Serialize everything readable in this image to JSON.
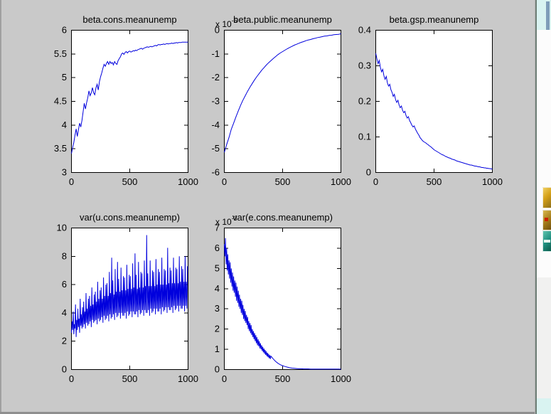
{
  "window": {
    "background": "#c9c9c9",
    "plot_background": "#ffffff",
    "axis_color": "#000000",
    "accent_line_color": "#0000dd"
  },
  "desktop_strip": {
    "visible": true,
    "icons": [
      "desktop-icon-1",
      "desktop-icon-2",
      "desktop-icon-3"
    ]
  },
  "chart_data": [
    {
      "type": "line",
      "title": "beta.cons.meanunemp",
      "subplot": {
        "row": 0,
        "col": 0
      },
      "xlim": [
        0,
        1000
      ],
      "ylim": [
        3,
        6
      ],
      "x_ticks": [
        0,
        500,
        1000
      ],
      "x_tick_labels": [
        "0",
        "500",
        "1000"
      ],
      "y_ticks": [
        3,
        3.5,
        4,
        4.5,
        5,
        5.5,
        6
      ],
      "y_tick_labels": [
        "3",
        "3.5",
        "4",
        "4.5",
        "5",
        "5.5",
        "6"
      ],
      "grid": false,
      "legend": null,
      "exponent": null,
      "line_color": "#0000dd",
      "x_start": 0,
      "x_step": 10,
      "y": [
        3.4,
        3.52,
        3.63,
        3.78,
        3.92,
        3.76,
        3.9,
        4.04,
        3.96,
        4.1,
        4.28,
        4.46,
        4.34,
        4.47,
        4.58,
        4.72,
        4.62,
        4.68,
        4.79,
        4.68,
        4.64,
        4.78,
        4.86,
        4.74,
        4.92,
        5.02,
        5.1,
        5.2,
        5.28,
        5.24,
        5.3,
        5.34,
        5.28,
        5.34,
        5.3,
        5.32,
        5.27,
        5.34,
        5.3,
        5.28,
        5.36,
        5.4,
        5.44,
        5.5,
        5.52,
        5.49,
        5.53,
        5.55,
        5.52,
        5.55,
        5.56,
        5.54,
        5.55,
        5.57,
        5.56,
        5.58,
        5.57,
        5.59,
        5.6,
        5.61,
        5.62,
        5.6,
        5.62,
        5.63,
        5.64,
        5.65,
        5.64,
        5.65,
        5.66,
        5.65,
        5.66,
        5.67,
        5.68,
        5.67,
        5.69,
        5.7,
        5.69,
        5.7,
        5.7,
        5.71,
        5.7,
        5.71,
        5.72,
        5.71,
        5.72,
        5.72,
        5.73,
        5.72,
        5.73,
        5.73,
        5.74,
        5.73,
        5.74,
        5.74,
        5.74,
        5.75,
        5.75,
        5.75,
        5.75,
        5.75,
        5.75
      ]
    },
    {
      "type": "line",
      "title": "beta.public.meanunemp",
      "subplot": {
        "row": 0,
        "col": 1
      },
      "xlim": [
        0,
        1000
      ],
      "ylim": [
        -6,
        0
      ],
      "x_ticks": [
        0,
        500,
        1000
      ],
      "x_tick_labels": [
        "0",
        "500",
        "1000"
      ],
      "y_ticks": [
        -6,
        -5,
        -4,
        -3,
        -2,
        -1,
        0
      ],
      "y_tick_labels": [
        "-6",
        "-5",
        "-4",
        "-3",
        "-2",
        "-1",
        "0"
      ],
      "grid": false,
      "legend": null,
      "exponent": {
        "text": "x 10",
        "sup": "-5"
      },
      "line_color": "#0000dd",
      "x_start": 0,
      "x_step": 20,
      "y": [
        -5.15,
        -4.82,
        -4.52,
        -4.18,
        -3.92,
        -3.65,
        -3.4,
        -3.16,
        -2.95,
        -2.76,
        -2.57,
        -2.4,
        -2.24,
        -2.09,
        -1.95,
        -1.82,
        -1.69,
        -1.58,
        -1.47,
        -1.37,
        -1.28,
        -1.19,
        -1.11,
        -1.03,
        -0.96,
        -0.9,
        -0.84,
        -0.78,
        -0.73,
        -0.68,
        -0.63,
        -0.59,
        -0.55,
        -0.51,
        -0.48,
        -0.44,
        -0.41,
        -0.39,
        -0.36,
        -0.34,
        -0.31,
        -0.29,
        -0.27,
        -0.25,
        -0.24,
        -0.22,
        -0.21,
        -0.19,
        -0.18,
        -0.17,
        -0.15
      ]
    },
    {
      "type": "line",
      "title": "beta.gsp.meanunemp",
      "subplot": {
        "row": 0,
        "col": 2
      },
      "xlim": [
        0,
        1000
      ],
      "ylim": [
        0,
        0.4
      ],
      "x_ticks": [
        0,
        500,
        1000
      ],
      "x_tick_labels": [
        "0",
        "500",
        "1000"
      ],
      "y_ticks": [
        0,
        0.1,
        0.2,
        0.3,
        0.4
      ],
      "y_tick_labels": [
        "0",
        "0.1",
        "0.2",
        "0.3",
        "0.4"
      ],
      "grid": false,
      "legend": null,
      "exponent": null,
      "line_color": "#0000dd",
      "x_start": 0,
      "x_step": 10,
      "y": [
        0.335,
        0.32,
        0.306,
        0.315,
        0.295,
        0.283,
        0.29,
        0.272,
        0.262,
        0.27,
        0.252,
        0.243,
        0.248,
        0.233,
        0.225,
        0.214,
        0.22,
        0.205,
        0.197,
        0.203,
        0.19,
        0.182,
        0.187,
        0.175,
        0.168,
        0.172,
        0.16,
        0.153,
        0.157,
        0.146,
        0.14,
        0.133,
        0.128,
        0.131,
        0.122,
        0.116,
        0.11,
        0.105,
        0.098,
        0.094,
        0.09,
        0.087,
        0.085,
        0.083,
        0.08,
        0.078,
        0.075,
        0.073,
        0.07,
        0.067,
        0.064,
        0.062,
        0.06,
        0.058,
        0.056,
        0.054,
        0.052,
        0.05,
        0.049,
        0.047,
        0.045,
        0.044,
        0.042,
        0.041,
        0.04,
        0.038,
        0.037,
        0.036,
        0.035,
        0.033,
        0.032,
        0.031,
        0.03,
        0.029,
        0.028,
        0.027,
        0.026,
        0.025,
        0.024,
        0.023,
        0.022,
        0.021,
        0.021,
        0.02,
        0.019,
        0.018,
        0.018,
        0.017,
        0.016,
        0.016,
        0.015,
        0.014,
        0.014,
        0.013,
        0.013,
        0.012,
        0.012,
        0.011,
        0.011,
        0.01,
        0.01
      ]
    },
    {
      "type": "line",
      "title": "var(u.cons.meanunemp)",
      "subplot": {
        "row": 1,
        "col": 0
      },
      "xlim": [
        0,
        1000
      ],
      "ylim": [
        0,
        10
      ],
      "x_ticks": [
        0,
        500,
        1000
      ],
      "x_tick_labels": [
        "0",
        "500",
        "1000"
      ],
      "y_ticks": [
        0,
        2,
        4,
        6,
        8,
        10
      ],
      "y_tick_labels": [
        "0",
        "2",
        "4",
        "6",
        "8",
        "10"
      ],
      "grid": false,
      "legend": null,
      "exponent": null,
      "line_color": "#0000dd",
      "x_start": 0,
      "x_step": 5,
      "y": [
        2.6,
        3.4,
        2.8,
        4.1,
        2.5,
        3.2,
        2.9,
        4.6,
        2.3,
        3.5,
        2.8,
        4.3,
        3.0,
        3.6,
        2.6,
        5.0,
        3.1,
        3.9,
        2.9,
        4.4,
        3.0,
        4.8,
        3.2,
        4.1,
        2.9,
        5.4,
        3.3,
        4.3,
        3.1,
        5.0,
        3.2,
        5.2,
        3.4,
        4.5,
        3.0,
        5.8,
        3.5,
        4.6,
        3.3,
        5.3,
        3.4,
        5.5,
        3.5,
        4.8,
        3.2,
        6.2,
        3.6,
        5.0,
        3.4,
        5.6,
        3.5,
        5.8,
        3.7,
        5.0,
        3.3,
        6.5,
        3.8,
        5.2,
        3.5,
        6.0,
        3.6,
        6.1,
        3.8,
        5.2,
        3.4,
        6.9,
        3.9,
        5.4,
        3.6,
        7.9,
        3.7,
        6.3,
        3.9,
        5.3,
        3.5,
        7.1,
        4.0,
        5.5,
        3.7,
        7.6,
        3.8,
        6.4,
        4.0,
        5.5,
        3.6,
        7.2,
        4.0,
        5.6,
        3.8,
        6.6,
        3.8,
        6.5,
        4.0,
        5.6,
        3.6,
        7.4,
        4.1,
        5.7,
        3.8,
        6.7,
        3.9,
        6.6,
        4.1,
        5.7,
        3.7,
        7.5,
        4.1,
        5.8,
        3.9,
        8.2,
        3.9,
        6.7,
        4.1,
        5.7,
        3.7,
        7.6,
        4.2,
        5.8,
        3.9,
        6.9,
        4.0,
        6.8,
        4.2,
        5.8,
        3.8,
        7.7,
        4.2,
        5.9,
        4.0,
        9.5,
        4.0,
        6.8,
        4.2,
        5.9,
        3.8,
        7.7,
        4.3,
        5.9,
        4.0,
        7.0,
        4.1,
        6.9,
        4.3,
        5.9,
        3.9,
        7.8,
        4.3,
        6.0,
        4.1,
        7.1,
        4.1,
        6.9,
        4.3,
        6.0,
        3.9,
        7.9,
        4.4,
        6.0,
        4.1,
        7.1,
        4.2,
        7.0,
        4.4,
        6.0,
        4.0,
        8.6,
        4.4,
        6.1,
        4.2,
        7.2,
        4.2,
        7.0,
        4.4,
        6.1,
        4.0,
        7.9,
        4.5,
        6.1,
        4.2,
        7.2,
        4.3,
        7.1,
        4.5,
        6.1,
        4.1,
        8.0,
        4.5,
        6.2,
        4.3,
        7.3,
        4.3,
        7.1,
        4.5,
        6.2,
        4.1,
        8.0,
        4.5,
        6.2,
        4.3,
        7.3
      ]
    },
    {
      "type": "line",
      "title": "var(e.cons.meanunemp)",
      "subplot": {
        "row": 1,
        "col": 1
      },
      "xlim": [
        0,
        1000
      ],
      "ylim": [
        0,
        7
      ],
      "x_ticks": [
        0,
        500,
        1000
      ],
      "x_tick_labels": [
        "0",
        "500",
        "1000"
      ],
      "y_ticks": [
        0,
        1,
        2,
        3,
        4,
        5,
        6,
        7
      ],
      "y_tick_labels": [
        "0",
        "1",
        "2",
        "3",
        "4",
        "5",
        "6",
        "7"
      ],
      "grid": false,
      "legend": null,
      "exponent": {
        "text": "x 10",
        "sup": "-3"
      },
      "line_color": "#0000dd",
      "x": [
        0,
        5,
        10,
        15,
        20,
        25,
        30,
        35,
        40,
        45,
        50,
        55,
        60,
        65,
        70,
        75,
        80,
        85,
        90,
        95,
        100,
        105,
        110,
        115,
        120,
        125,
        130,
        135,
        140,
        145,
        150,
        155,
        160,
        165,
        170,
        175,
        180,
        185,
        190,
        195,
        200,
        205,
        210,
        215,
        220,
        225,
        230,
        235,
        240,
        245,
        250,
        255,
        260,
        265,
        270,
        275,
        280,
        285,
        290,
        295,
        300,
        305,
        310,
        315,
        320,
        325,
        330,
        335,
        340,
        345,
        350,
        355,
        360,
        365,
        370,
        375,
        380,
        385,
        390,
        395,
        400,
        420,
        440,
        460,
        480,
        500,
        520,
        540,
        560,
        580,
        600,
        620,
        640,
        660,
        680,
        700,
        720,
        740,
        760,
        780,
        800,
        820,
        840,
        860,
        880,
        900,
        920,
        940,
        960,
        980,
        1000
      ],
      "y": [
        6.2,
        5.6,
        6.5,
        5.2,
        6.0,
        4.9,
        5.7,
        4.7,
        5.4,
        4.5,
        5.3,
        4.3,
        5.0,
        4.1,
        4.8,
        3.9,
        4.6,
        3.8,
        4.4,
        3.6,
        4.3,
        3.4,
        4.1,
        3.3,
        3.9,
        3.1,
        3.7,
        3.0,
        3.5,
        2.8,
        3.4,
        2.7,
        3.2,
        2.5,
        3.0,
        2.4,
        2.9,
        2.3,
        2.7,
        2.2,
        2.6,
        2.0,
        2.4,
        1.9,
        2.3,
        1.8,
        2.2,
        1.7,
        2.0,
        1.6,
        1.9,
        1.5,
        1.8,
        1.4,
        1.7,
        1.3,
        1.6,
        1.2,
        1.5,
        1.15,
        1.4,
        1.05,
        1.3,
        1.0,
        1.2,
        0.92,
        1.12,
        0.85,
        1.04,
        0.78,
        0.97,
        0.72,
        0.9,
        0.66,
        0.83,
        0.61,
        0.77,
        0.56,
        0.71,
        0.52,
        0.66,
        0.52,
        0.4,
        0.31,
        0.24,
        0.19,
        0.15,
        0.12,
        0.09,
        0.07,
        0.06,
        0.05,
        0.04,
        0.04,
        0.03,
        0.03,
        0.03,
        0.02,
        0.02,
        0.02,
        0.02,
        0.02,
        0.02,
        0.02,
        0.02,
        0.02,
        0.02,
        0.02,
        0.02,
        0.02,
        0.02
      ]
    }
  ]
}
